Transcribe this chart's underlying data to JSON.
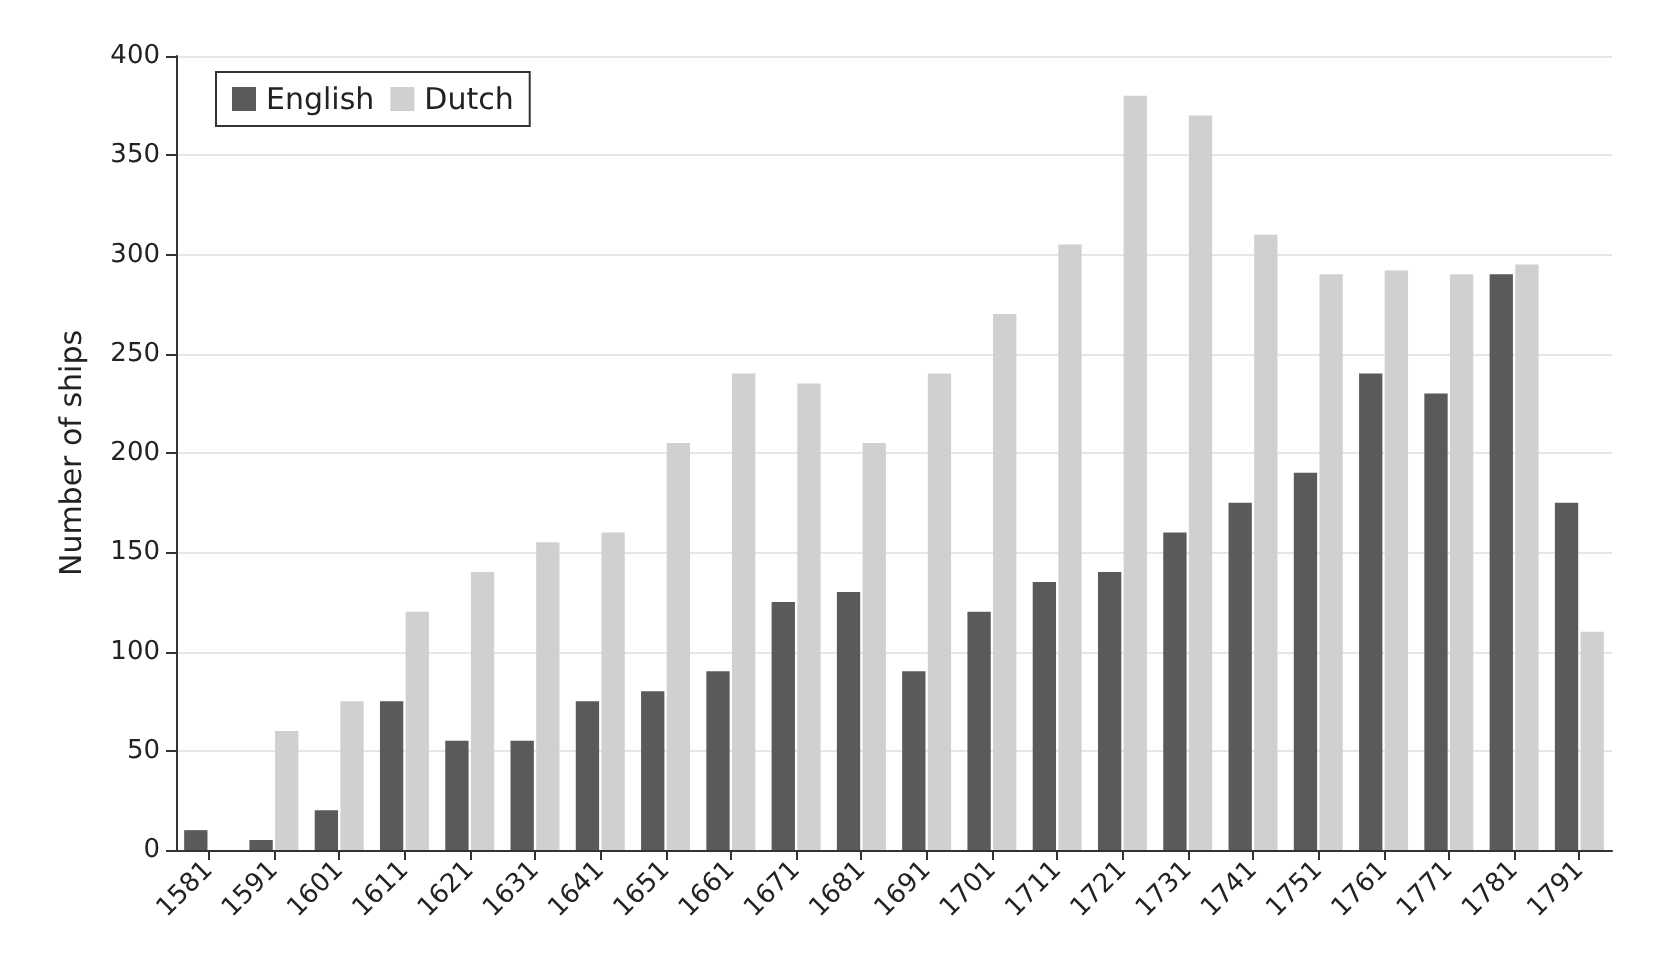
{
  "chart_data": {
    "type": "bar",
    "ylabel": "Number of ships",
    "categories": [
      "1581",
      "1591",
      "1601",
      "1611",
      "1621",
      "1631",
      "1641",
      "1651",
      "1661",
      "1671",
      "1681",
      "1691",
      "1701",
      "1711",
      "1721",
      "1731",
      "1741",
      "1751",
      "1761",
      "1771",
      "1781",
      "1791"
    ],
    "series": [
      {
        "name": "English",
        "color": "#5a5a5a",
        "values": [
          10,
          5,
          20,
          75,
          55,
          55,
          75,
          80,
          90,
          125,
          130,
          90,
          120,
          135,
          140,
          160,
          175,
          190,
          240,
          230,
          290,
          175
        ]
      },
      {
        "name": "Dutch",
        "color": "#d0d0d0",
        "values": [
          0,
          60,
          75,
          120,
          140,
          155,
          160,
          205,
          240,
          235,
          205,
          240,
          270,
          305,
          380,
          370,
          310,
          290,
          292,
          290,
          295,
          110
        ]
      }
    ],
    "ylim": [
      0,
      400
    ],
    "yticks": [
      0,
      50,
      100,
      150,
      200,
      250,
      300,
      350,
      400
    ],
    "grid": "y",
    "legend": "top left"
  }
}
